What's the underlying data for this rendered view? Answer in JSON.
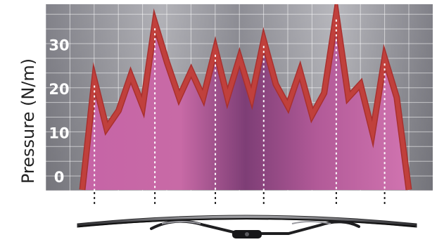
{
  "chart_data": {
    "type": "area",
    "title": "",
    "xlabel": "",
    "ylabel": "Pressure (N/m)",
    "y_ticks": [
      "0",
      "10",
      "20",
      "30"
    ],
    "ylim": [
      -3,
      38
    ],
    "grid": true,
    "series": [
      {
        "values": [
          -3,
          22,
          11,
          15,
          23,
          16,
          35,
          26,
          18,
          24,
          18,
          29,
          18,
          27,
          18,
          31,
          21,
          16,
          24,
          14,
          19,
          37,
          18,
          21,
          10,
          27,
          18,
          -3
        ]
      }
    ],
    "dotted_markers_at_point_index": [
      1,
      6,
      11,
      15,
      21,
      25
    ],
    "colors": {
      "line": "#c0403c",
      "fill": "#c0609a",
      "fill_dark": "#7a3c6e",
      "grid_background": "#9a9aa2",
      "tick_text": "#ffffff",
      "marker": "#222222"
    },
    "illustration": "wiper-blade"
  }
}
